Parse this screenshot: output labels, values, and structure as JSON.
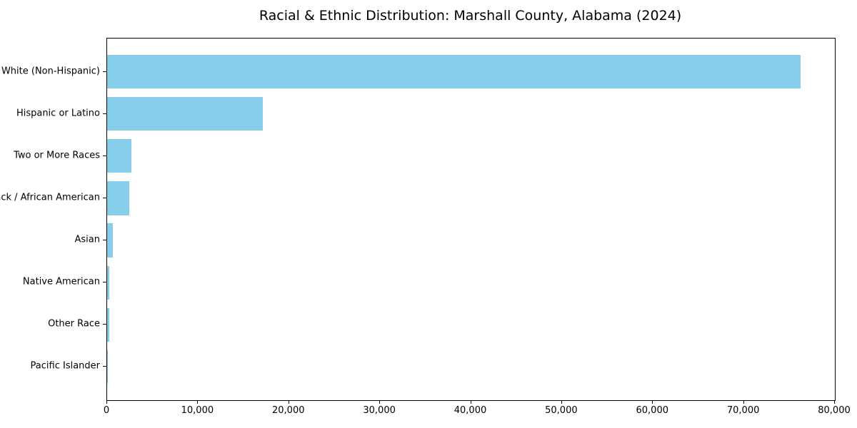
{
  "title": "Racial & Ethnic Distribution: Marshall County, Alabama (2024)",
  "chart_data": {
    "type": "bar",
    "orientation": "horizontal",
    "title": "Racial & Ethnic Distribution: Marshall County, Alabama (2024)",
    "categories": [
      "White (Non-Hispanic)",
      "Hispanic or Latino",
      "Two or More Races",
      "Black / African American",
      "Asian",
      "Native American",
      "Other Race",
      "Pacific Islander"
    ],
    "values": [
      76200,
      17100,
      2700,
      2450,
      620,
      240,
      230,
      30
    ],
    "xlabel": "",
    "ylabel": "",
    "xlim": [
      0,
      80000
    ],
    "x_ticks": [
      0,
      10000,
      20000,
      30000,
      40000,
      50000,
      60000,
      70000,
      80000
    ],
    "x_tick_labels": [
      "0",
      "10,000",
      "20,000",
      "30,000",
      "40,000",
      "50,000",
      "60,000",
      "70,000",
      "80,000"
    ],
    "grid": false,
    "legend": "none",
    "bar_color": "#87CEEB",
    "background_color": "#ffffff",
    "spine_color": "#000000"
  }
}
